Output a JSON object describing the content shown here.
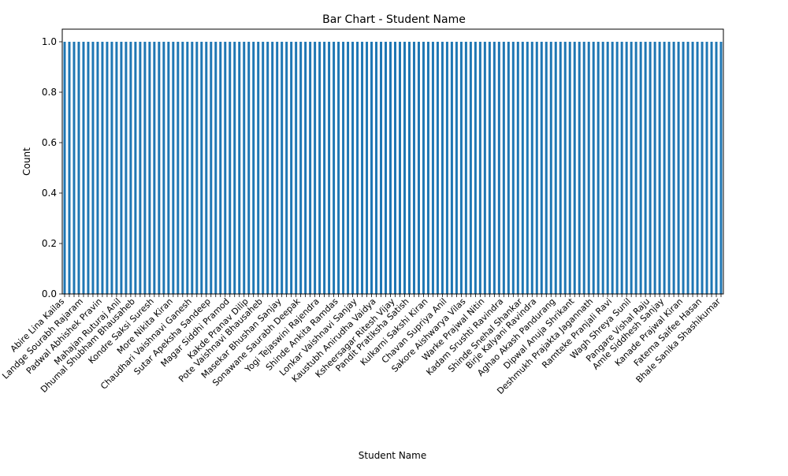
{
  "chart_data": {
    "type": "bar",
    "title": "Bar Chart - Student Name",
    "xlabel": "Student Name",
    "ylabel": "Count",
    "ylim": [
      0,
      1.05
    ],
    "yticks": [
      "0.0",
      "0.2",
      "0.4",
      "0.6",
      "0.8",
      "1.0"
    ],
    "ytick_values": [
      0.0,
      0.2,
      0.4,
      0.6,
      0.8,
      1.0
    ],
    "bar_color": "#1f77b4",
    "bar_value": 1,
    "bar_count": 140,
    "grid": false,
    "legend": "none",
    "categories": [
      "Abire Lina Kailas",
      "Landge Sourabh Rajaram",
      "Padwal Abhishek Pravin",
      "Mahajan Ruturaj Anil",
      "Dhumal Shubham Bhausaheb",
      "Kondre Saksi Suresh",
      "More Nikita Kiran",
      "Chaudhari Vaishnavi Ganesh",
      "Sutar Apeksha Sandeep",
      "Magar Siddhi Pramod",
      "Kakde Pranav Dilip",
      "Pote Vaishnavi Bhausaheb",
      "Masekar Bhushan Sanjay",
      "Sonawane Saurabh Deepak",
      "Yogi Tejaswini Rajendra",
      "Shinde Ankita Ramdas",
      "Lonkar Vaishnavi Sanjay",
      "Kaustubh Anirudha Vaidya",
      "Ksheersagar Ritesh Vijay",
      "Pandit Pratiksha Satish",
      "Kulkarni Sakshi Kiran",
      "Chavan Supriya Anil",
      "Sakore Aishwarya Vilas",
      "Warke Prajwal Nitin",
      "Kadam Srushti Ravindra",
      "Shinde Snehal Shankar",
      "Birje Kalyani Ravindra",
      "Aghao Akash Pandurang",
      "Dipwal Anuja Shrikant",
      "Deshmukh Prajakta Jagannath",
      "Ramteke Pranjali Ravi",
      "Wagh Shreya Sunil",
      "Pangare Vishal Raju",
      "Amle Siddhesh Sanjay",
      "Kanade Prajwal Kiran",
      "Fatema Saifee Hasan",
      "Bhale Sanika Shashikumar"
    ]
  }
}
